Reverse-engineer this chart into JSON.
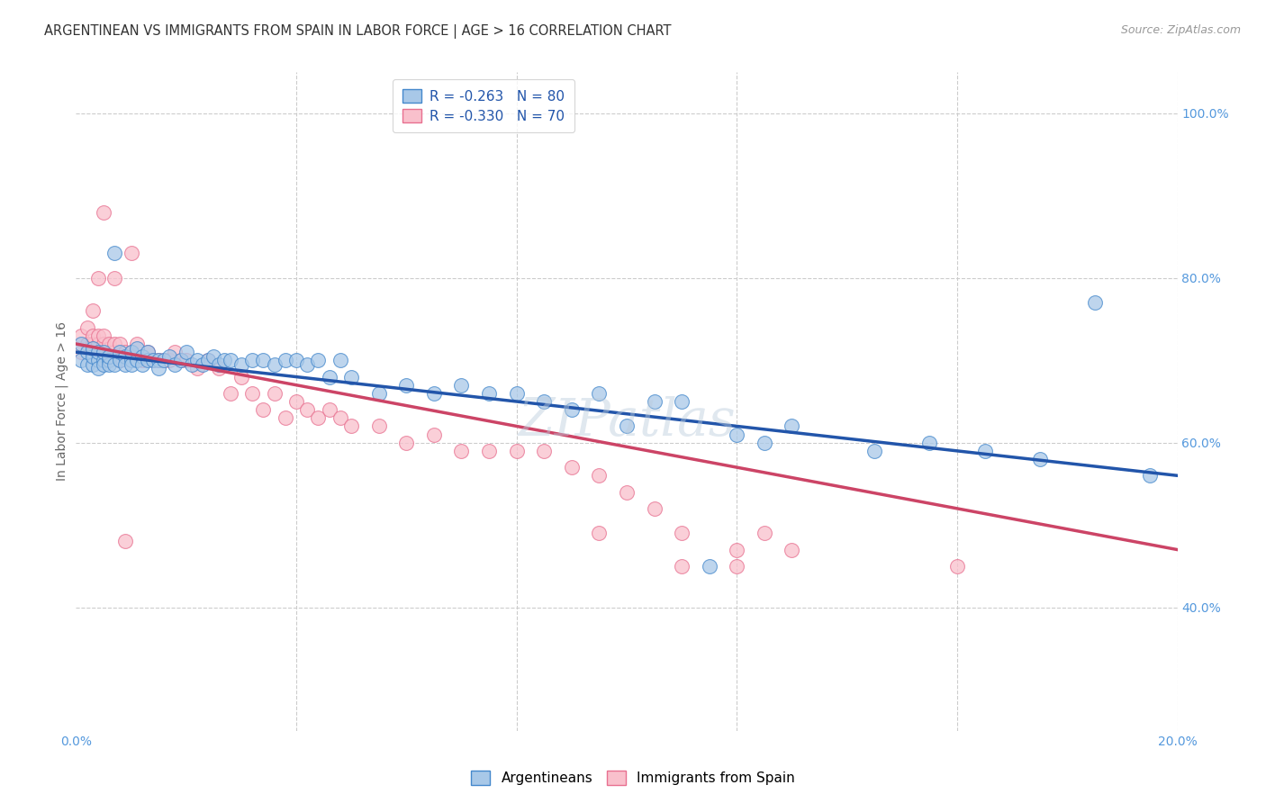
{
  "title": "ARGENTINEAN VS IMMIGRANTS FROM SPAIN IN LABOR FORCE | AGE > 16 CORRELATION CHART",
  "source": "Source: ZipAtlas.com",
  "ylabel": "In Labor Force | Age > 16",
  "xlim": [
    0.0,
    0.2
  ],
  "ylim": [
    0.25,
    1.05
  ],
  "x_ticks": [
    0.0,
    0.04,
    0.08,
    0.12,
    0.16,
    0.2
  ],
  "x_tick_labels": [
    "0.0%",
    "",
    "",
    "",
    "",
    "20.0%"
  ],
  "y_ticks_right": [
    0.4,
    0.6,
    0.8,
    1.0
  ],
  "y_tick_labels_right": [
    "40.0%",
    "60.0%",
    "80.0%",
    "100.0%"
  ],
  "legend_blue_label": "R = -0.263   N = 80",
  "legend_pink_label": "R = -0.330   N = 70",
  "legend_bottom_blue": "Argentineans",
  "legend_bottom_pink": "Immigrants from Spain",
  "blue_fill": "#a8c8e8",
  "pink_fill": "#f9c0cc",
  "blue_edge": "#4488cc",
  "pink_edge": "#e87090",
  "blue_line": "#2255aa",
  "pink_line": "#cc4466",
  "watermark": "ZIPatlas",
  "axis_label_color": "#5599dd",
  "grid_color": "#cccccc",
  "blue_scatter_x": [
    0.001,
    0.001,
    0.002,
    0.002,
    0.003,
    0.003,
    0.003,
    0.004,
    0.004,
    0.004,
    0.005,
    0.005,
    0.005,
    0.006,
    0.006,
    0.006,
    0.007,
    0.007,
    0.008,
    0.008,
    0.009,
    0.009,
    0.01,
    0.01,
    0.01,
    0.011,
    0.011,
    0.012,
    0.012,
    0.013,
    0.013,
    0.014,
    0.015,
    0.015,
    0.016,
    0.017,
    0.018,
    0.019,
    0.02,
    0.021,
    0.022,
    0.023,
    0.024,
    0.025,
    0.026,
    0.027,
    0.028,
    0.03,
    0.032,
    0.034,
    0.036,
    0.038,
    0.04,
    0.042,
    0.044,
    0.046,
    0.048,
    0.05,
    0.055,
    0.06,
    0.065,
    0.07,
    0.075,
    0.08,
    0.085,
    0.09,
    0.095,
    0.1,
    0.105,
    0.11,
    0.115,
    0.12,
    0.125,
    0.13,
    0.145,
    0.155,
    0.165,
    0.175,
    0.185,
    0.195
  ],
  "blue_scatter_y": [
    0.7,
    0.72,
    0.695,
    0.71,
    0.695,
    0.705,
    0.715,
    0.7,
    0.69,
    0.71,
    0.7,
    0.695,
    0.71,
    0.7,
    0.695,
    0.705,
    0.83,
    0.695,
    0.7,
    0.71,
    0.705,
    0.695,
    0.7,
    0.71,
    0.695,
    0.7,
    0.715,
    0.705,
    0.695,
    0.7,
    0.71,
    0.7,
    0.7,
    0.69,
    0.7,
    0.705,
    0.695,
    0.7,
    0.71,
    0.695,
    0.7,
    0.695,
    0.7,
    0.705,
    0.695,
    0.7,
    0.7,
    0.695,
    0.7,
    0.7,
    0.695,
    0.7,
    0.7,
    0.695,
    0.7,
    0.68,
    0.7,
    0.68,
    0.66,
    0.67,
    0.66,
    0.67,
    0.66,
    0.66,
    0.65,
    0.64,
    0.66,
    0.62,
    0.65,
    0.65,
    0.45,
    0.61,
    0.6,
    0.62,
    0.59,
    0.6,
    0.59,
    0.58,
    0.77,
    0.56
  ],
  "pink_scatter_x": [
    0.001,
    0.001,
    0.002,
    0.002,
    0.003,
    0.003,
    0.004,
    0.004,
    0.005,
    0.005,
    0.006,
    0.006,
    0.007,
    0.007,
    0.008,
    0.008,
    0.009,
    0.01,
    0.01,
    0.011,
    0.012,
    0.013,
    0.014,
    0.015,
    0.016,
    0.017,
    0.018,
    0.019,
    0.02,
    0.022,
    0.024,
    0.026,
    0.028,
    0.03,
    0.032,
    0.034,
    0.036,
    0.038,
    0.04,
    0.042,
    0.044,
    0.046,
    0.048,
    0.05,
    0.055,
    0.06,
    0.065,
    0.07,
    0.075,
    0.08,
    0.085,
    0.09,
    0.095,
    0.1,
    0.105,
    0.11,
    0.12,
    0.125,
    0.13,
    0.16,
    0.003,
    0.004,
    0.005,
    0.006,
    0.007,
    0.008,
    0.009,
    0.11,
    0.095,
    0.12
  ],
  "pink_scatter_y": [
    0.71,
    0.73,
    0.72,
    0.74,
    0.72,
    0.73,
    0.72,
    0.73,
    0.72,
    0.73,
    0.71,
    0.72,
    0.71,
    0.72,
    0.7,
    0.72,
    0.71,
    0.83,
    0.71,
    0.72,
    0.7,
    0.71,
    0.7,
    0.7,
    0.7,
    0.7,
    0.71,
    0.7,
    0.7,
    0.69,
    0.7,
    0.69,
    0.66,
    0.68,
    0.66,
    0.64,
    0.66,
    0.63,
    0.65,
    0.64,
    0.63,
    0.64,
    0.63,
    0.62,
    0.62,
    0.6,
    0.61,
    0.59,
    0.59,
    0.59,
    0.59,
    0.57,
    0.56,
    0.54,
    0.52,
    0.49,
    0.47,
    0.49,
    0.47,
    0.45,
    0.76,
    0.8,
    0.88,
    0.7,
    0.8,
    0.7,
    0.48,
    0.45,
    0.49,
    0.45
  ],
  "blue_trend_x": [
    0.0,
    0.2
  ],
  "blue_trend_y": [
    0.71,
    0.56
  ],
  "pink_trend_x": [
    0.0,
    0.2
  ],
  "pink_trend_y": [
    0.72,
    0.47
  ]
}
